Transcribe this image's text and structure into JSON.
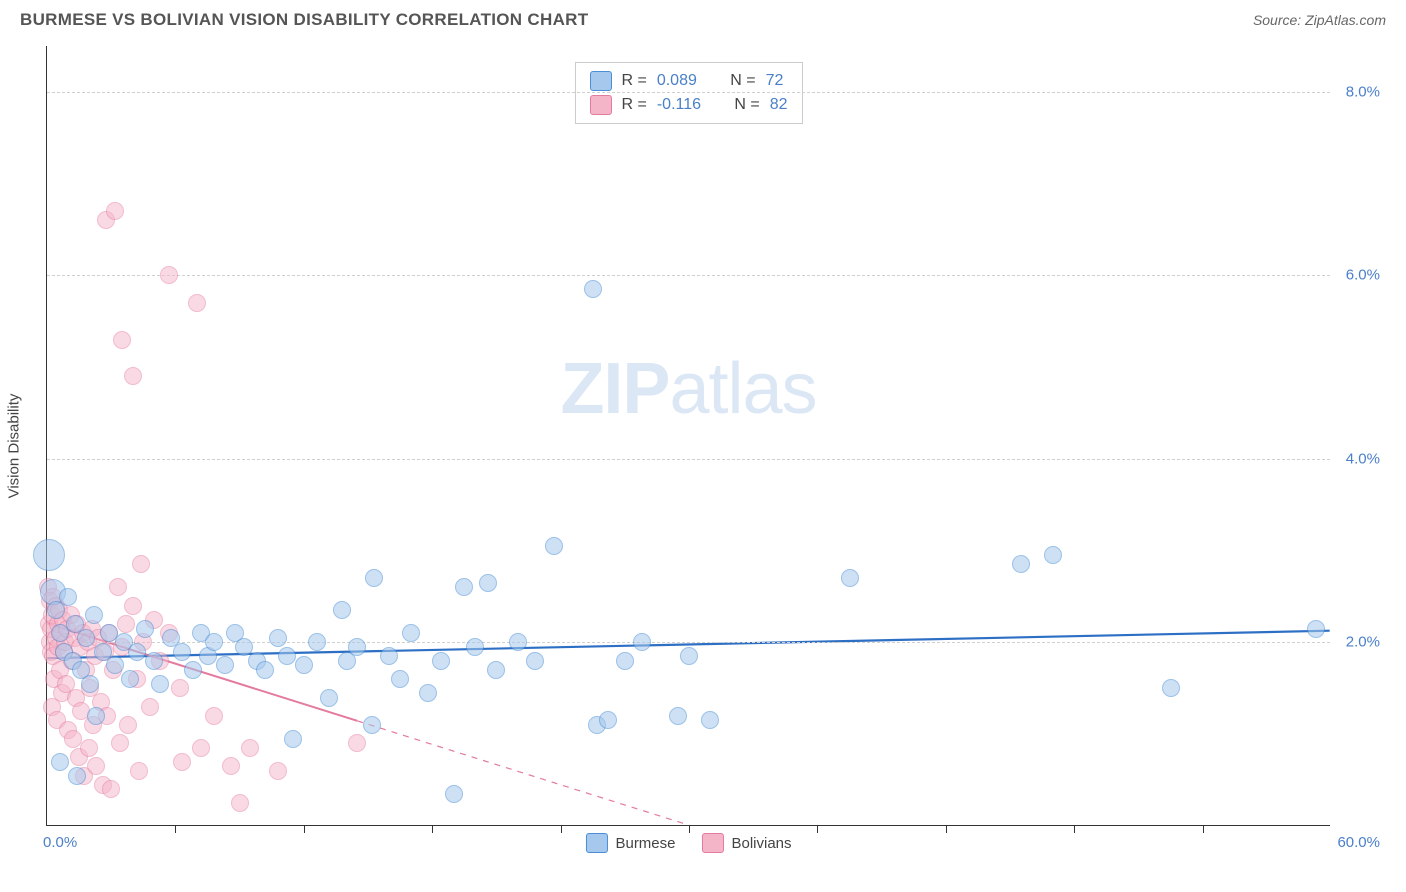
{
  "header": {
    "title": "BURMESE VS BOLIVIAN VISION DISABILITY CORRELATION CHART",
    "source": "Source: ZipAtlas.com"
  },
  "watermark": {
    "bold_part": "ZIP",
    "light_part": "atlas"
  },
  "chart": {
    "type": "scatter",
    "ylabel": "Vision Disability",
    "xlim": [
      0,
      60
    ],
    "ylim": [
      0,
      8.5
    ],
    "background_color": "#ffffff",
    "grid_color": "#d0d0d0",
    "grid_dash": true,
    "axis_color": "#333333",
    "ytick_positions": [
      2,
      4,
      6,
      8
    ],
    "ytick_labels": [
      "2.0%",
      "4.0%",
      "6.0%",
      "8.0%"
    ],
    "xtick_positions": [
      6,
      12,
      18,
      24,
      30,
      36,
      42,
      48,
      54
    ],
    "x_axis_label_left": "0.0%",
    "x_axis_label_right": "60.0%",
    "ytick_label_color": "#4a7fc9",
    "ytick_label_fontsize": 15,
    "label_fontsize": 15,
    "series": [
      {
        "name": "Burmese",
        "fill_color": "#a6c8ec",
        "fill_opacity": 0.55,
        "stroke_color": "#4a8fd6",
        "stroke_width": 1.5,
        "marker_radius": 9,
        "trend": {
          "y_at_x0": 1.82,
          "y_at_x60": 2.12,
          "color": "#2d6fc4",
          "width": 2.2,
          "solid_until_x": 60
        },
        "stats": {
          "R": "0.089",
          "N": "72"
        },
        "points": [
          {
            "x": 0.1,
            "y": 2.95,
            "r": 16
          },
          {
            "x": 0.3,
            "y": 2.55,
            "r": 13
          },
          {
            "x": 0.4,
            "y": 2.35
          },
          {
            "x": 0.6,
            "y": 0.7
          },
          {
            "x": 0.6,
            "y": 2.1
          },
          {
            "x": 0.8,
            "y": 1.9
          },
          {
            "x": 1.0,
            "y": 2.5
          },
          {
            "x": 1.2,
            "y": 1.8
          },
          {
            "x": 1.3,
            "y": 2.2
          },
          {
            "x": 1.4,
            "y": 0.55
          },
          {
            "x": 1.6,
            "y": 1.7
          },
          {
            "x": 1.8,
            "y": 2.05
          },
          {
            "x": 2.0,
            "y": 1.55
          },
          {
            "x": 2.2,
            "y": 2.3
          },
          {
            "x": 2.3,
            "y": 1.2
          },
          {
            "x": 2.6,
            "y": 1.9
          },
          {
            "x": 2.9,
            "y": 2.1
          },
          {
            "x": 3.2,
            "y": 1.75
          },
          {
            "x": 3.6,
            "y": 2.0
          },
          {
            "x": 3.9,
            "y": 1.6
          },
          {
            "x": 4.2,
            "y": 1.9
          },
          {
            "x": 4.6,
            "y": 2.15
          },
          {
            "x": 5.0,
            "y": 1.8
          },
          {
            "x": 5.3,
            "y": 1.55
          },
          {
            "x": 5.8,
            "y": 2.05
          },
          {
            "x": 6.3,
            "y": 1.9
          },
          {
            "x": 6.8,
            "y": 1.7
          },
          {
            "x": 7.2,
            "y": 2.1
          },
          {
            "x": 7.5,
            "y": 1.85
          },
          {
            "x": 7.8,
            "y": 2.0
          },
          {
            "x": 8.3,
            "y": 1.75
          },
          {
            "x": 8.8,
            "y": 2.1
          },
          {
            "x": 9.2,
            "y": 1.95
          },
          {
            "x": 9.8,
            "y": 1.8
          },
          {
            "x": 10.2,
            "y": 1.7
          },
          {
            "x": 10.8,
            "y": 2.05
          },
          {
            "x": 11.2,
            "y": 1.85
          },
          {
            "x": 11.5,
            "y": 0.95
          },
          {
            "x": 12.0,
            "y": 1.75
          },
          {
            "x": 12.6,
            "y": 2.0
          },
          {
            "x": 13.2,
            "y": 1.4
          },
          {
            "x": 13.8,
            "y": 2.35
          },
          {
            "x": 14.0,
            "y": 1.8
          },
          {
            "x": 14.5,
            "y": 1.95
          },
          {
            "x": 15.2,
            "y": 1.1
          },
          {
            "x": 15.3,
            "y": 2.7
          },
          {
            "x": 16.0,
            "y": 1.85
          },
          {
            "x": 16.5,
            "y": 1.6
          },
          {
            "x": 17.0,
            "y": 2.1
          },
          {
            "x": 17.8,
            "y": 1.45
          },
          {
            "x": 18.4,
            "y": 1.8
          },
          {
            "x": 19.0,
            "y": 0.35
          },
          {
            "x": 19.5,
            "y": 2.6
          },
          {
            "x": 20.0,
            "y": 1.95
          },
          {
            "x": 20.6,
            "y": 2.65
          },
          {
            "x": 21.0,
            "y": 1.7
          },
          {
            "x": 22.0,
            "y": 2.0
          },
          {
            "x": 22.8,
            "y": 1.8
          },
          {
            "x": 23.7,
            "y": 3.05
          },
          {
            "x": 25.5,
            "y": 5.85
          },
          {
            "x": 25.7,
            "y": 1.1
          },
          {
            "x": 26.2,
            "y": 1.15
          },
          {
            "x": 27.0,
            "y": 1.8
          },
          {
            "x": 27.8,
            "y": 2.0
          },
          {
            "x": 29.5,
            "y": 1.2
          },
          {
            "x": 30.0,
            "y": 1.85
          },
          {
            "x": 31.0,
            "y": 1.15
          },
          {
            "x": 37.5,
            "y": 2.7
          },
          {
            "x": 45.5,
            "y": 2.85
          },
          {
            "x": 47.0,
            "y": 2.95
          },
          {
            "x": 52.5,
            "y": 1.5
          },
          {
            "x": 59.3,
            "y": 2.15
          }
        ]
      },
      {
        "name": "Bolivians",
        "fill_color": "#f5b5c8",
        "fill_opacity": 0.5,
        "stroke_color": "#e47a9e",
        "stroke_width": 1.5,
        "marker_radius": 9,
        "trend": {
          "y_at_x0": 2.2,
          "y_at_x60": -2.2,
          "color": "#e47a9e",
          "width": 2,
          "solid_until_x": 14.5
        },
        "stats": {
          "R": "-0.116",
          "N": "82"
        },
        "points": [
          {
            "x": 0.05,
            "y": 2.6
          },
          {
            "x": 0.1,
            "y": 2.2
          },
          {
            "x": 0.12,
            "y": 2.0
          },
          {
            "x": 0.15,
            "y": 2.45
          },
          {
            "x": 0.18,
            "y": 1.9
          },
          {
            "x": 0.2,
            "y": 2.15
          },
          {
            "x": 0.22,
            "y": 1.3
          },
          {
            "x": 0.25,
            "y": 2.3
          },
          {
            "x": 0.3,
            "y": 1.85
          },
          {
            "x": 0.3,
            "y": 2.5
          },
          {
            "x": 0.35,
            "y": 1.6
          },
          {
            "x": 0.4,
            "y": 2.05
          },
          {
            "x": 0.4,
            "y": 2.4
          },
          {
            "x": 0.45,
            "y": 1.15
          },
          {
            "x": 0.5,
            "y": 2.2
          },
          {
            "x": 0.5,
            "y": 1.95
          },
          {
            "x": 0.55,
            "y": 2.35
          },
          {
            "x": 0.6,
            "y": 1.7
          },
          {
            "x": 0.65,
            "y": 2.1
          },
          {
            "x": 0.7,
            "y": 1.45
          },
          {
            "x": 0.75,
            "y": 2.25
          },
          {
            "x": 0.8,
            "y": 1.9
          },
          {
            "x": 0.85,
            "y": 2.0
          },
          {
            "x": 0.9,
            "y": 1.55
          },
          {
            "x": 0.95,
            "y": 2.15
          },
          {
            "x": 1.0,
            "y": 1.05
          },
          {
            "x": 1.1,
            "y": 2.3
          },
          {
            "x": 1.15,
            "y": 1.8
          },
          {
            "x": 1.2,
            "y": 0.95
          },
          {
            "x": 1.3,
            "y": 2.05
          },
          {
            "x": 1.35,
            "y": 1.4
          },
          {
            "x": 1.4,
            "y": 2.2
          },
          {
            "x": 1.5,
            "y": 0.75
          },
          {
            "x": 1.55,
            "y": 1.95
          },
          {
            "x": 1.6,
            "y": 1.25
          },
          {
            "x": 1.7,
            "y": 2.1
          },
          {
            "x": 1.75,
            "y": 0.55
          },
          {
            "x": 1.8,
            "y": 1.7
          },
          {
            "x": 1.9,
            "y": 2.0
          },
          {
            "x": 1.95,
            "y": 0.85
          },
          {
            "x": 2.0,
            "y": 1.5
          },
          {
            "x": 2.1,
            "y": 2.15
          },
          {
            "x": 2.15,
            "y": 1.1
          },
          {
            "x": 2.25,
            "y": 1.85
          },
          {
            "x": 2.3,
            "y": 0.65
          },
          {
            "x": 2.4,
            "y": 2.05
          },
          {
            "x": 2.5,
            "y": 1.35
          },
          {
            "x": 2.6,
            "y": 0.45
          },
          {
            "x": 2.7,
            "y": 1.9
          },
          {
            "x": 2.75,
            "y": 6.6
          },
          {
            "x": 2.8,
            "y": 1.2
          },
          {
            "x": 2.9,
            "y": 2.1
          },
          {
            "x": 3.0,
            "y": 0.4
          },
          {
            "x": 3.1,
            "y": 1.7
          },
          {
            "x": 3.2,
            "y": 6.7
          },
          {
            "x": 3.3,
            "y": 2.6
          },
          {
            "x": 3.4,
            "y": 0.9
          },
          {
            "x": 3.5,
            "y": 1.95
          },
          {
            "x": 3.5,
            "y": 5.3
          },
          {
            "x": 3.7,
            "y": 2.2
          },
          {
            "x": 3.8,
            "y": 1.1
          },
          {
            "x": 4.0,
            "y": 2.4
          },
          {
            "x": 4.0,
            "y": 4.9
          },
          {
            "x": 4.2,
            "y": 1.6
          },
          {
            "x": 4.3,
            "y": 0.6
          },
          {
            "x": 4.4,
            "y": 2.85
          },
          {
            "x": 4.5,
            "y": 2.0
          },
          {
            "x": 4.8,
            "y": 1.3
          },
          {
            "x": 5.0,
            "y": 2.25
          },
          {
            "x": 5.3,
            "y": 1.8
          },
          {
            "x": 5.7,
            "y": 2.1
          },
          {
            "x": 5.7,
            "y": 6.0
          },
          {
            "x": 6.2,
            "y": 1.5
          },
          {
            "x": 6.3,
            "y": 0.7
          },
          {
            "x": 7.0,
            "y": 5.7
          },
          {
            "x": 7.2,
            "y": 0.85
          },
          {
            "x": 7.8,
            "y": 1.2
          },
          {
            "x": 8.6,
            "y": 0.65
          },
          {
            "x": 9.0,
            "y": 0.25
          },
          {
            "x": 9.5,
            "y": 0.85
          },
          {
            "x": 10.8,
            "y": 0.6
          },
          {
            "x": 14.5,
            "y": 0.9
          }
        ]
      }
    ]
  },
  "legend": {
    "swatch_border_radius": 3,
    "stats_label_color": "#444444",
    "stats_value_color": "#4a7fc9"
  }
}
